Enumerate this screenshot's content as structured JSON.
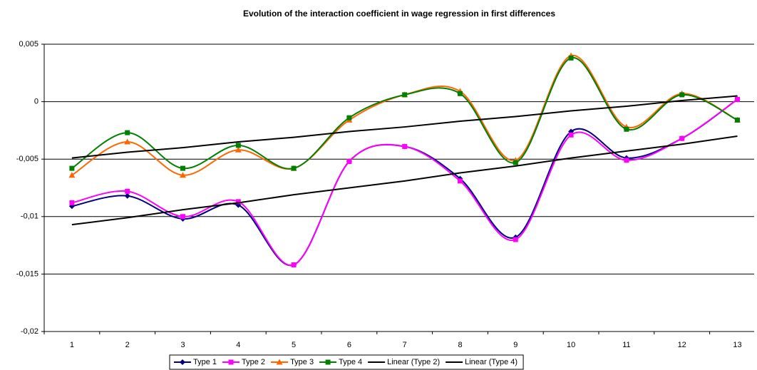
{
  "chart_data": {
    "type": "line",
    "title": "Evolution of the interaction coefficient in wage regression in first differences",
    "categories": [
      "1",
      "2",
      "3",
      "4",
      "5",
      "6",
      "7",
      "8",
      "9",
      "10",
      "11",
      "12",
      "13"
    ],
    "ylim": [
      -0.02,
      0.005
    ],
    "yticks": [
      {
        "value": -0.02,
        "label": "-0,02"
      },
      {
        "value": -0.015,
        "label": "-0,015"
      },
      {
        "value": -0.01,
        "label": "-0,01"
      },
      {
        "value": -0.005,
        "label": "-0,005"
      },
      0,
      {
        "value": 0.005,
        "label": "0,005"
      }
    ],
    "grid": true,
    "legend": "bottom",
    "series": [
      {
        "name": "Type 1",
        "color": "#000080",
        "marker": "diamond",
        "smooth": true,
        "values": [
          -0.0091,
          -0.0082,
          -0.0102,
          -0.009,
          -0.0142,
          -0.0052,
          -0.0039,
          -0.0067,
          -0.0118,
          -0.0026,
          -0.0049,
          -0.0032,
          0.0002
        ]
      },
      {
        "name": "Type 2",
        "color": "#ff00ff",
        "marker": "square",
        "smooth": true,
        "values": [
          -0.0088,
          -0.0078,
          -0.01,
          -0.0087,
          -0.0142,
          -0.0052,
          -0.0039,
          -0.0069,
          -0.012,
          -0.0029,
          -0.0051,
          -0.0032,
          0.0002
        ]
      },
      {
        "name": "Type 3",
        "color": "#ff6600",
        "marker": "triangle",
        "smooth": true,
        "values": [
          -0.0064,
          -0.0035,
          -0.0064,
          -0.0042,
          -0.0058,
          -0.0016,
          0.0006,
          0.0009,
          -0.0051,
          0.004,
          -0.0022,
          0.0007,
          -0.0016
        ]
      },
      {
        "name": "Type 4",
        "color": "#008000",
        "marker": "square",
        "smooth": true,
        "values": [
          -0.0058,
          -0.0027,
          -0.0058,
          -0.0038,
          -0.0058,
          -0.0014,
          0.0006,
          0.0007,
          -0.0053,
          0.0038,
          -0.0024,
          0.0006,
          -0.0016
        ]
      },
      {
        "name": "Linear (Type 2)",
        "color": "#000000",
        "marker": "none",
        "smooth": false,
        "values": [
          -0.0107,
          -0.0101,
          -0.0094,
          -0.0088,
          -0.0081,
          -0.0075,
          -0.0069,
          -0.0062,
          -0.0056,
          -0.0049,
          -0.0043,
          -0.0037,
          -0.003
        ]
      },
      {
        "name": "Linear (Type 4)",
        "color": "#000000",
        "marker": "none",
        "smooth": false,
        "values": [
          -0.0049,
          -0.0044,
          -0.004,
          -0.0035,
          -0.0031,
          -0.0026,
          -0.0022,
          -0.0017,
          -0.0013,
          -0.0008,
          -0.0004,
          0.0001,
          0.0005
        ]
      }
    ]
  }
}
